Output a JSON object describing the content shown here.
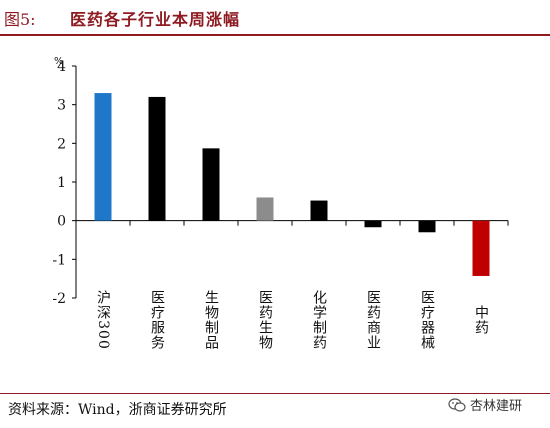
{
  "figure": {
    "label": "图5:",
    "title": "医药各子行业本周涨幅"
  },
  "chart_data": {
    "type": "bar",
    "unit": "%",
    "categories": [
      "沪深300",
      "医疗服务",
      "生物制品",
      "医药生物",
      "化学制药",
      "医药商业",
      "医疗器械",
      "中药"
    ],
    "values": [
      3.3,
      3.2,
      1.87,
      0.6,
      0.52,
      -0.17,
      -0.3,
      -1.43
    ],
    "bar_colors": [
      "#1f77c9",
      "#000000",
      "#000000",
      "#8c8c8c",
      "#000000",
      "#000000",
      "#000000",
      "#c00000"
    ],
    "ylim": [
      -2,
      4
    ],
    "yticks": [
      4,
      3,
      2,
      1,
      0,
      -1,
      -2
    ],
    "grid": false,
    "legend": "none"
  },
  "source": "资料来源：Wind，浙商证券研究所",
  "watermark": {
    "text": "杏林建研",
    "icon": "wechat-icon"
  }
}
